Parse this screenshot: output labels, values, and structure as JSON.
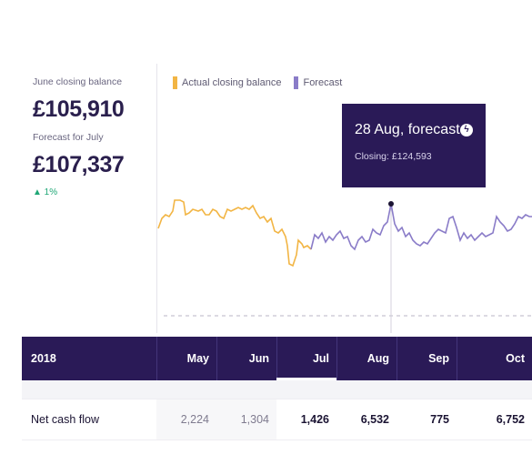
{
  "summary": {
    "june_label": "June closing balance",
    "june_value": "£105,910",
    "forecast_label": "Forecast for July",
    "forecast_value": "£107,337",
    "forecast_delta": "▲ 1%"
  },
  "legend": [
    {
      "label": "Actual closing balance",
      "color": "#f2b544"
    },
    {
      "label": "Forecast",
      "color": "#8a7cc8"
    }
  ],
  "tooltip": {
    "title": "28 Aug, forecast",
    "subtitle": "Closing: £124,593",
    "icon": "lightning-icon"
  },
  "table": {
    "year": "2018",
    "months": [
      "May",
      "Jun",
      "Jul",
      "Aug",
      "Sep",
      "Oct"
    ],
    "selected_month": "Jul",
    "rows": [
      {
        "label": "Net cash flow",
        "values": [
          "2,224",
          "1,304",
          "1,426",
          "6,532",
          "775",
          "6,752"
        ]
      }
    ]
  },
  "colors": {
    "header_bg": "#2a1a57",
    "actual_line": "#f2b544",
    "forecast_line": "#8a7cc8",
    "positive": "#1fa776"
  }
}
